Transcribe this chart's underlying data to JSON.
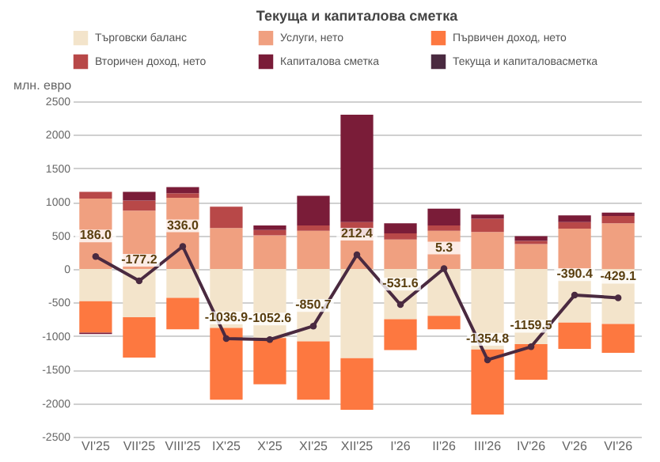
{
  "chart_data": {
    "type": "bar",
    "title": "Текуща и капиталова сметка",
    "ylabel": "млн. евро",
    "stacked": true,
    "legend": "top",
    "grid": "y",
    "marker": "circle",
    "categories": [
      "VI'25",
      "VII'25",
      "VIII'25",
      "IX'25",
      "X'25",
      "XI'25",
      "XII'25",
      "I'26",
      "II'26",
      "III'26",
      "IV'26",
      "V'26",
      "VI'26"
    ],
    "ylim": [
      -2500,
      2500
    ],
    "yticks": [
      -2500,
      -2000,
      -1500,
      -1000,
      -500,
      0,
      500,
      1000,
      1500,
      2000,
      2500
    ],
    "series": [
      {
        "name": "Търговски баланс",
        "color": "#f3e4cb",
        "values": [
          -480,
          -720,
          -430,
          -880,
          -1030,
          -1080,
          -1330,
          -750,
          -700,
          -1200,
          -1120,
          -800,
          -820
        ]
      },
      {
        "name": "Услуги, нето",
        "color": "#f0a080",
        "values": [
          1050,
          870,
          1060,
          610,
          500,
          570,
          500,
          440,
          570,
          550,
          370,
          600,
          680
        ]
      },
      {
        "name": "Първичен доход, нето",
        "color": "#fd7840",
        "values": [
          -470,
          -600,
          -470,
          -1070,
          -690,
          -870,
          -770,
          -460,
          -200,
          -970,
          -530,
          -390,
          -430
        ]
      },
      {
        "name": "Вторичен доход, нето",
        "color": "#b84848",
        "values": [
          100,
          150,
          70,
          320,
          80,
          80,
          200,
          90,
          80,
          200,
          50,
          100,
          110
        ]
      },
      {
        "name": "Капиталова сметка",
        "color": "#7a1c38",
        "values": [
          -20,
          130,
          90,
          0,
          70,
          440,
          1600,
          150,
          250,
          60,
          70,
          100,
          50
        ]
      },
      {
        "name": "Текуща и капиталовасметка",
        "type": "line",
        "color": "#4a2a40",
        "values": [
          186.0,
          -177.2,
          336.0,
          -1036.9,
          -1052.6,
          -850.7,
          212.4,
          -531.6,
          5.3,
          -1354.8,
          -1159.5,
          -390.4,
          -429.1
        ],
        "value_labels": [
          "186.0",
          "-177.2",
          "336.0",
          "-1036.9",
          "-1052.6",
          "-850.7",
          "212.4",
          "-531.6",
          "5.3",
          "-1354.8",
          "-1159.5",
          "-390.4",
          "-429.1"
        ]
      }
    ]
  }
}
